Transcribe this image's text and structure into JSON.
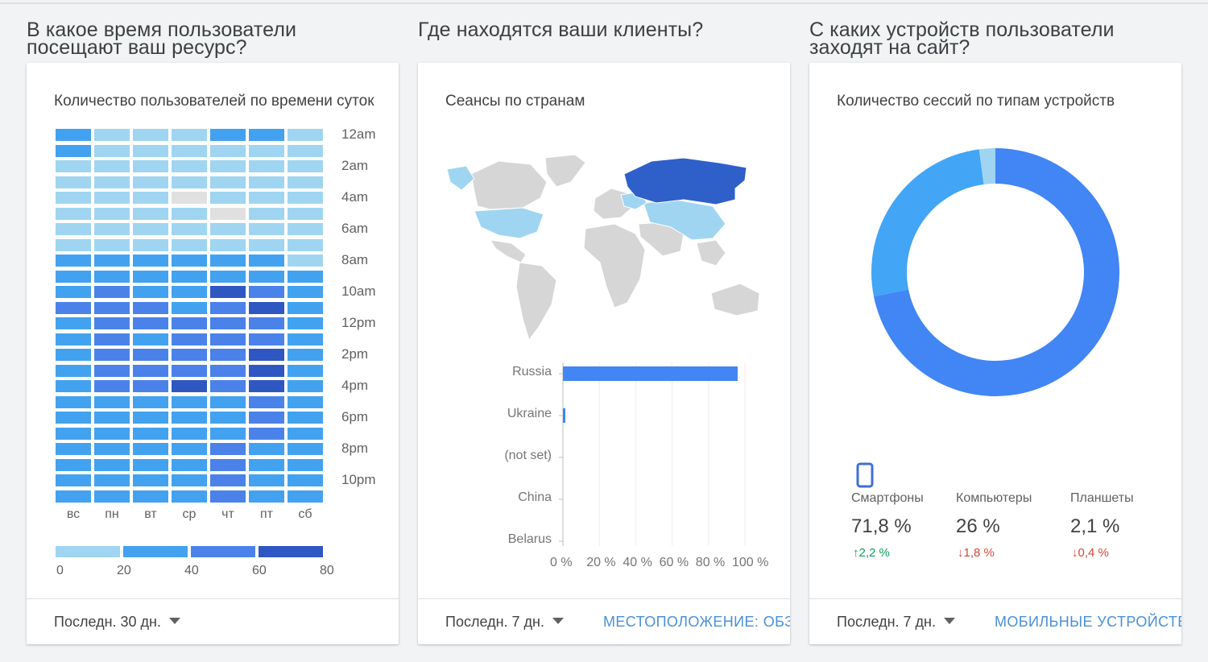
{
  "sections": [
    {
      "title": "В какое время пользователи посещают ваш ресурс?",
      "card_title": "Количество пользователей по времени суток",
      "period": "Последн. 30 дн."
    },
    {
      "title": "Где находятся ваши клиенты?",
      "card_title": "Сеансы по странам",
      "period": "Последн. 7 дн.",
      "link": "МЕСТОПОЛОЖЕНИЕ: ОБЗОР"
    },
    {
      "title": "С каких устройств пользователи заходят на сайт?",
      "card_title": "Количество сессий по типам устройств",
      "period": "Последн. 7 дн.",
      "link": "МОБИЛЬНЫЕ УСТРОЙСТВА"
    }
  ],
  "chart_data": [
    {
      "type": "heatmap",
      "days": [
        "вс",
        "пн",
        "вт",
        "ср",
        "чт",
        "пт",
        "сб"
      ],
      "hour_labels": [
        "12am",
        "2am",
        "4am",
        "6am",
        "8am",
        "10am",
        "12pm",
        "2pm",
        "4pm",
        "6pm",
        "8pm",
        "10pm"
      ],
      "legend_ticks": [
        "0",
        "20",
        "40",
        "60",
        "80"
      ],
      "legend_colors": [
        "#9fd5f1",
        "#42a2ef",
        "#4a82ea",
        "#2f57c2"
      ],
      "values_by_hour": [
        [
          2,
          1,
          1,
          1,
          2,
          2,
          1
        ],
        [
          2,
          1,
          1,
          1,
          1,
          1,
          1
        ],
        [
          1,
          1,
          1,
          1,
          1,
          1,
          1
        ],
        [
          1,
          1,
          1,
          1,
          1,
          1,
          1
        ],
        [
          1,
          1,
          1,
          0,
          1,
          1,
          1
        ],
        [
          1,
          1,
          1,
          1,
          0,
          1,
          1
        ],
        [
          1,
          1,
          1,
          1,
          1,
          1,
          1
        ],
        [
          1,
          1,
          1,
          1,
          1,
          1,
          1
        ],
        [
          2,
          2,
          2,
          2,
          2,
          2,
          1
        ],
        [
          2,
          2,
          2,
          2,
          2,
          2,
          2
        ],
        [
          2,
          3,
          2,
          2,
          4,
          3,
          2
        ],
        [
          3,
          3,
          3,
          2,
          3,
          4,
          2
        ],
        [
          2,
          3,
          3,
          3,
          3,
          3,
          2
        ],
        [
          2,
          3,
          2,
          3,
          3,
          3,
          2
        ],
        [
          2,
          3,
          3,
          3,
          3,
          4,
          2
        ],
        [
          2,
          3,
          3,
          3,
          3,
          4,
          2
        ],
        [
          2,
          3,
          3,
          4,
          3,
          4,
          2
        ],
        [
          2,
          2,
          2,
          2,
          2,
          3,
          2
        ],
        [
          2,
          2,
          2,
          2,
          2,
          3,
          2
        ],
        [
          2,
          2,
          2,
          2,
          2,
          3,
          2
        ],
        [
          2,
          2,
          2,
          2,
          3,
          2,
          2
        ],
        [
          2,
          2,
          2,
          2,
          3,
          2,
          2
        ],
        [
          2,
          2,
          2,
          2,
          3,
          2,
          2
        ],
        [
          2,
          2,
          2,
          2,
          3,
          2,
          2
        ]
      ]
    },
    {
      "type": "bar",
      "orientation": "horizontal",
      "categories": [
        "Russia",
        "Ukraine",
        "(not set)",
        "China",
        "Belarus"
      ],
      "values": [
        96,
        1,
        0,
        0,
        0
      ],
      "x_ticks": [
        "0 %",
        "20 %",
        "40 %",
        "60 %",
        "80 %",
        "100 %"
      ],
      "xlim": [
        0,
        100
      ],
      "color": "#4285f4"
    },
    {
      "type": "pie",
      "donut": true,
      "categories": [
        "Смартфоны",
        "Компьютеры",
        "Планшеты"
      ],
      "values": [
        71.8,
        26,
        2.1
      ],
      "value_labels": [
        "71,8 %",
        "26 %",
        "2,1 %"
      ],
      "deltas": [
        "2,2 %",
        "1,8 %",
        "0,4 %"
      ],
      "delta_dirs": [
        "up",
        "down",
        "down"
      ],
      "colors": [
        "#4285f4",
        "#42a5f5",
        "#9fd5f1"
      ],
      "legend_icon": "smartphone-icon"
    }
  ]
}
